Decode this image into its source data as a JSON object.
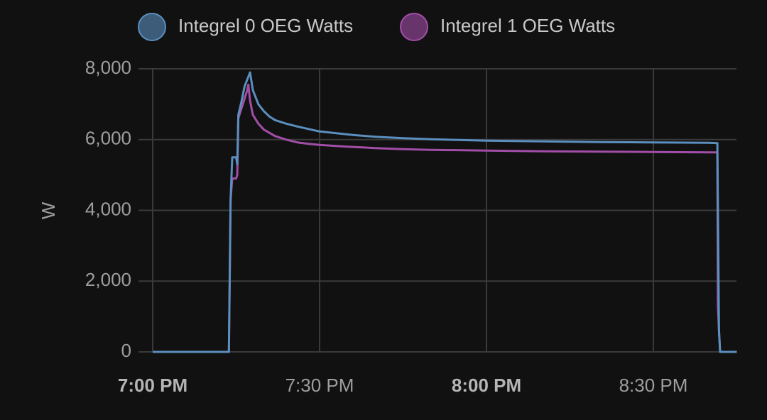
{
  "chart_data": {
    "type": "line",
    "ylabel": "W",
    "ylim": [
      0,
      8000
    ],
    "yticks": [
      {
        "value": 0,
        "label": "0"
      },
      {
        "value": 2000,
        "label": "2,000"
      },
      {
        "value": 4000,
        "label": "4,000"
      },
      {
        "value": 6000,
        "label": "6,000"
      },
      {
        "value": 8000,
        "label": "8,000"
      }
    ],
    "xlim": [
      0,
      105
    ],
    "xticks": [
      {
        "value": 0,
        "label": "7:00 PM",
        "bold": true
      },
      {
        "value": 30,
        "label": "7:30 PM",
        "bold": false
      },
      {
        "value": 60,
        "label": "8:00 PM",
        "bold": true
      },
      {
        "value": 90,
        "label": "8:30 PM",
        "bold": false
      }
    ],
    "grid": true,
    "legend_position": "top",
    "series": [
      {
        "name": "Integrel 0 OEG Watts",
        "color": "#5b8fbf",
        "points": [
          [
            0,
            0
          ],
          [
            13.7,
            0
          ],
          [
            14,
            4300
          ],
          [
            14.3,
            5500
          ],
          [
            15,
            5500
          ],
          [
            15.2,
            5300
          ],
          [
            15.4,
            6700
          ],
          [
            16,
            7100
          ],
          [
            16.5,
            7500
          ],
          [
            17,
            7700
          ],
          [
            17.5,
            7900
          ],
          [
            18,
            7400
          ],
          [
            19,
            7000
          ],
          [
            20,
            6800
          ],
          [
            21,
            6650
          ],
          [
            22,
            6550
          ],
          [
            24,
            6450
          ],
          [
            26,
            6370
          ],
          [
            28,
            6300
          ],
          [
            30,
            6230
          ],
          [
            33,
            6180
          ],
          [
            36,
            6130
          ],
          [
            40,
            6080
          ],
          [
            45,
            6040
          ],
          [
            50,
            6010
          ],
          [
            55,
            5990
          ],
          [
            60,
            5970
          ],
          [
            70,
            5950
          ],
          [
            80,
            5930
          ],
          [
            90,
            5920
          ],
          [
            100,
            5910
          ],
          [
            101.5,
            5900
          ],
          [
            101.8,
            600
          ],
          [
            102,
            0
          ],
          [
            105,
            0
          ]
        ]
      },
      {
        "name": "Integrel 1 OEG Watts",
        "color": "#a24ea8",
        "points": [
          [
            0,
            0
          ],
          [
            13.7,
            0
          ],
          [
            14,
            4300
          ],
          [
            14.3,
            4900
          ],
          [
            15,
            4900
          ],
          [
            15.2,
            5000
          ],
          [
            15.4,
            6600
          ],
          [
            16,
            6900
          ],
          [
            16.5,
            7150
          ],
          [
            17,
            7400
          ],
          [
            17.2,
            7550
          ],
          [
            17.5,
            7100
          ],
          [
            18,
            6700
          ],
          [
            19,
            6450
          ],
          [
            20,
            6280
          ],
          [
            22,
            6100
          ],
          [
            24,
            6000
          ],
          [
            26,
            5920
          ],
          [
            28,
            5880
          ],
          [
            30,
            5850
          ],
          [
            35,
            5800
          ],
          [
            40,
            5760
          ],
          [
            45,
            5730
          ],
          [
            50,
            5710
          ],
          [
            60,
            5690
          ],
          [
            70,
            5670
          ],
          [
            80,
            5660
          ],
          [
            90,
            5650
          ],
          [
            100,
            5640
          ],
          [
            101.5,
            5640
          ],
          [
            101.6,
            1300
          ],
          [
            101.8,
            600
          ],
          [
            102,
            0
          ],
          [
            105,
            0
          ]
        ]
      }
    ]
  }
}
